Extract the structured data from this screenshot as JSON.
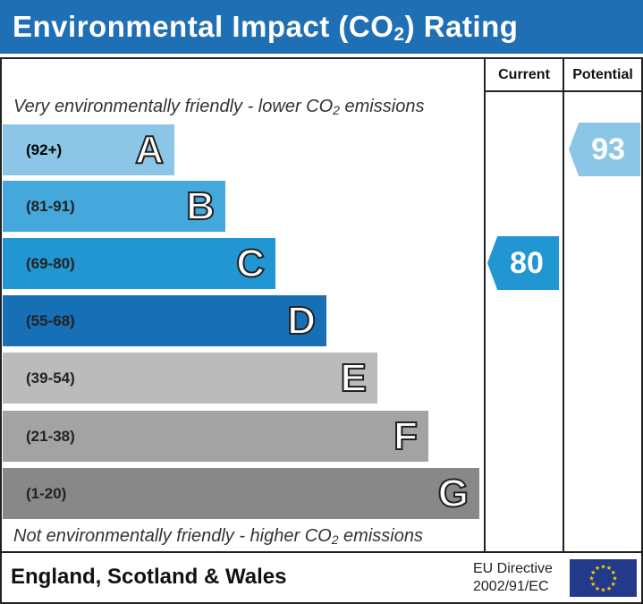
{
  "title": "Environmental Impact (CO2) Rating",
  "columns": {
    "current": "Current",
    "potential": "Potential"
  },
  "top_note": "Very environmentally friendly - lower CO2 emissions",
  "bottom_note": "Not environmentally friendly - higher CO2 emissions",
  "footer": {
    "region": "England, Scotland & Wales",
    "directive_line1": "EU Directive",
    "directive_line2": "2002/91/EC"
  },
  "chart_data": {
    "type": "bar",
    "categories": [
      "A",
      "B",
      "C",
      "D",
      "E",
      "F",
      "G"
    ],
    "bands": [
      {
        "letter": "A",
        "range": "(92+)",
        "color": "#8cc6e7"
      },
      {
        "letter": "B",
        "range": "(81-91)",
        "color": "#45a8dc"
      },
      {
        "letter": "C",
        "range": "(69-80)",
        "color": "#2296d2"
      },
      {
        "letter": "D",
        "range": "(55-68)",
        "color": "#1770b6"
      },
      {
        "letter": "E",
        "range": "(39-54)",
        "color": "#bbbbbb"
      },
      {
        "letter": "F",
        "range": "(21-38)",
        "color": "#a3a3a3"
      },
      {
        "letter": "G",
        "range": "(1-20)",
        "color": "#888888"
      }
    ],
    "current": {
      "value": 80,
      "band": "C",
      "color": "#2296d2"
    },
    "potential": {
      "value": 93,
      "band": "A",
      "color": "#8cc6e7"
    }
  }
}
